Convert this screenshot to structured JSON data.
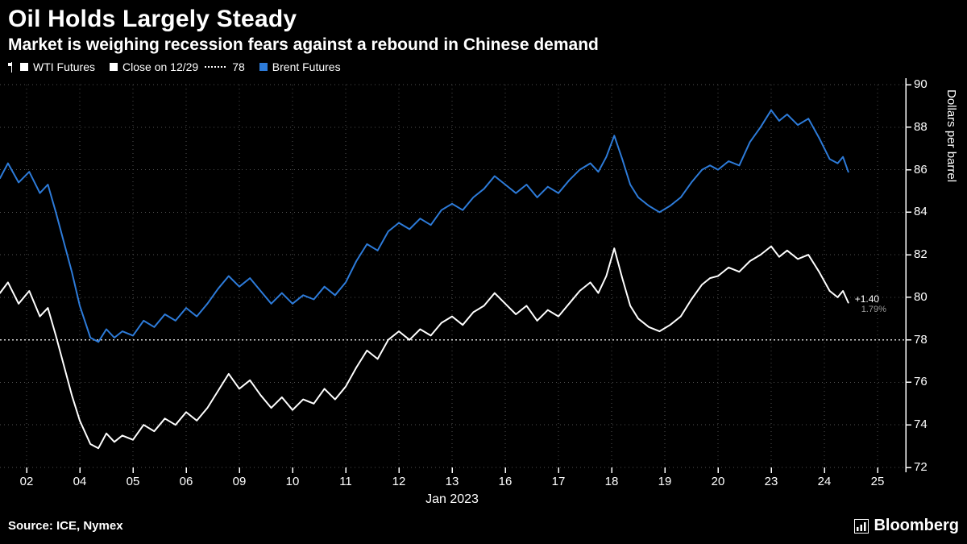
{
  "header": {
    "title": "Oil Holds Largely Steady",
    "subtitle": "Market is weighing recession fears against a rebound in Chinese demand"
  },
  "legend": {
    "wti_label": "WTI Futures",
    "close_label": "Close on 12/29",
    "close_value": "78",
    "brent_label": "Brent Futures"
  },
  "annotation": {
    "change": "+1.40",
    "pct": "1.79%"
  },
  "axis": {
    "y_label": "Dollars per barrel",
    "x_label": "Jan 2023"
  },
  "footer": {
    "source": "Source: ICE, Nymex",
    "brand": "Bloomberg"
  },
  "colors": {
    "wti": "#ffffff",
    "brent": "#2d7bd9",
    "grid": "#4f4f4f",
    "close_line": "#d9d9d9",
    "axis": "#ffffff"
  },
  "chart_data": {
    "type": "line",
    "title": "Oil Holds Largely Steady",
    "x_ticks": [
      "02",
      "04",
      "05",
      "06",
      "09",
      "10",
      "11",
      "12",
      "13",
      "16",
      "17",
      "18",
      "19",
      "20",
      "23",
      "24",
      "25"
    ],
    "x_month_label": "Jan 2023",
    "y_ticks": [
      72,
      74,
      76,
      78,
      80,
      82,
      84,
      86,
      88,
      90
    ],
    "x_domain": [
      0,
      17
    ],
    "y_domain": [
      72,
      90
    ],
    "grid": true,
    "close_line_value": 78,
    "ylabel": "Dollars per barrel",
    "series": [
      {
        "name": "WTI Futures",
        "color_key": "wti",
        "points": [
          [
            0.0,
            80.2
          ],
          [
            0.15,
            80.7
          ],
          [
            0.35,
            79.7
          ],
          [
            0.55,
            80.3
          ],
          [
            0.75,
            79.1
          ],
          [
            0.9,
            79.5
          ],
          [
            1.05,
            78.2
          ],
          [
            1.2,
            76.8
          ],
          [
            1.35,
            75.4
          ],
          [
            1.5,
            74.2
          ],
          [
            1.7,
            73.1
          ],
          [
            1.85,
            72.9
          ],
          [
            2.0,
            73.6
          ],
          [
            2.15,
            73.2
          ],
          [
            2.3,
            73.5
          ],
          [
            2.5,
            73.3
          ],
          [
            2.7,
            74.0
          ],
          [
            2.9,
            73.7
          ],
          [
            3.1,
            74.3
          ],
          [
            3.3,
            74.0
          ],
          [
            3.5,
            74.6
          ],
          [
            3.7,
            74.2
          ],
          [
            3.9,
            74.8
          ],
          [
            4.1,
            75.6
          ],
          [
            4.3,
            76.4
          ],
          [
            4.5,
            75.7
          ],
          [
            4.7,
            76.1
          ],
          [
            4.9,
            75.4
          ],
          [
            5.1,
            74.8
          ],
          [
            5.3,
            75.3
          ],
          [
            5.5,
            74.7
          ],
          [
            5.7,
            75.2
          ],
          [
            5.9,
            75.0
          ],
          [
            6.1,
            75.7
          ],
          [
            6.3,
            75.2
          ],
          [
            6.5,
            75.8
          ],
          [
            6.7,
            76.7
          ],
          [
            6.9,
            77.5
          ],
          [
            7.1,
            77.1
          ],
          [
            7.3,
            78.0
          ],
          [
            7.5,
            78.4
          ],
          [
            7.7,
            78.0
          ],
          [
            7.9,
            78.5
          ],
          [
            8.1,
            78.2
          ],
          [
            8.3,
            78.8
          ],
          [
            8.5,
            79.1
          ],
          [
            8.7,
            78.7
          ],
          [
            8.9,
            79.3
          ],
          [
            9.1,
            79.6
          ],
          [
            9.3,
            80.2
          ],
          [
            9.5,
            79.7
          ],
          [
            9.7,
            79.2
          ],
          [
            9.9,
            79.6
          ],
          [
            10.1,
            78.9
          ],
          [
            10.3,
            79.4
          ],
          [
            10.5,
            79.1
          ],
          [
            10.7,
            79.7
          ],
          [
            10.9,
            80.3
          ],
          [
            11.1,
            80.7
          ],
          [
            11.25,
            80.2
          ],
          [
            11.4,
            81.0
          ],
          [
            11.55,
            82.3
          ],
          [
            11.7,
            80.9
          ],
          [
            11.85,
            79.6
          ],
          [
            12.0,
            79.0
          ],
          [
            12.2,
            78.6
          ],
          [
            12.4,
            78.4
          ],
          [
            12.6,
            78.7
          ],
          [
            12.8,
            79.1
          ],
          [
            13.0,
            79.9
          ],
          [
            13.2,
            80.6
          ],
          [
            13.35,
            80.9
          ],
          [
            13.5,
            81.0
          ],
          [
            13.7,
            81.4
          ],
          [
            13.9,
            81.2
          ],
          [
            14.1,
            81.7
          ],
          [
            14.3,
            82.0
          ],
          [
            14.5,
            82.4
          ],
          [
            14.65,
            81.9
          ],
          [
            14.8,
            82.2
          ],
          [
            15.0,
            81.8
          ],
          [
            15.2,
            82.0
          ],
          [
            15.4,
            81.2
          ],
          [
            15.6,
            80.3
          ],
          [
            15.75,
            80.0
          ],
          [
            15.85,
            80.3
          ],
          [
            15.95,
            79.75
          ]
        ]
      },
      {
        "name": "Brent Futures",
        "color_key": "brent",
        "points": [
          [
            0.0,
            85.6
          ],
          [
            0.15,
            86.3
          ],
          [
            0.35,
            85.4
          ],
          [
            0.55,
            85.9
          ],
          [
            0.75,
            84.9
          ],
          [
            0.9,
            85.3
          ],
          [
            1.05,
            84.0
          ],
          [
            1.2,
            82.6
          ],
          [
            1.35,
            81.2
          ],
          [
            1.5,
            79.6
          ],
          [
            1.7,
            78.1
          ],
          [
            1.85,
            77.9
          ],
          [
            2.0,
            78.5
          ],
          [
            2.15,
            78.1
          ],
          [
            2.3,
            78.4
          ],
          [
            2.5,
            78.2
          ],
          [
            2.7,
            78.9
          ],
          [
            2.9,
            78.6
          ],
          [
            3.1,
            79.2
          ],
          [
            3.3,
            78.9
          ],
          [
            3.5,
            79.5
          ],
          [
            3.7,
            79.1
          ],
          [
            3.9,
            79.7
          ],
          [
            4.1,
            80.4
          ],
          [
            4.3,
            81.0
          ],
          [
            4.5,
            80.5
          ],
          [
            4.7,
            80.9
          ],
          [
            4.9,
            80.3
          ],
          [
            5.1,
            79.7
          ],
          [
            5.3,
            80.2
          ],
          [
            5.5,
            79.7
          ],
          [
            5.7,
            80.1
          ],
          [
            5.9,
            79.9
          ],
          [
            6.1,
            80.5
          ],
          [
            6.3,
            80.1
          ],
          [
            6.5,
            80.7
          ],
          [
            6.7,
            81.7
          ],
          [
            6.9,
            82.5
          ],
          [
            7.1,
            82.2
          ],
          [
            7.3,
            83.1
          ],
          [
            7.5,
            83.5
          ],
          [
            7.7,
            83.2
          ],
          [
            7.9,
            83.7
          ],
          [
            8.1,
            83.4
          ],
          [
            8.3,
            84.1
          ],
          [
            8.5,
            84.4
          ],
          [
            8.7,
            84.1
          ],
          [
            8.9,
            84.7
          ],
          [
            9.1,
            85.1
          ],
          [
            9.3,
            85.7
          ],
          [
            9.5,
            85.3
          ],
          [
            9.7,
            84.9
          ],
          [
            9.9,
            85.3
          ],
          [
            10.1,
            84.7
          ],
          [
            10.3,
            85.2
          ],
          [
            10.5,
            84.9
          ],
          [
            10.7,
            85.5
          ],
          [
            10.9,
            86.0
          ],
          [
            11.1,
            86.3
          ],
          [
            11.25,
            85.9
          ],
          [
            11.4,
            86.6
          ],
          [
            11.55,
            87.6
          ],
          [
            11.7,
            86.5
          ],
          [
            11.85,
            85.3
          ],
          [
            12.0,
            84.7
          ],
          [
            12.2,
            84.3
          ],
          [
            12.4,
            84.0
          ],
          [
            12.6,
            84.3
          ],
          [
            12.8,
            84.7
          ],
          [
            13.0,
            85.4
          ],
          [
            13.2,
            86.0
          ],
          [
            13.35,
            86.2
          ],
          [
            13.5,
            86.0
          ],
          [
            13.7,
            86.4
          ],
          [
            13.9,
            86.2
          ],
          [
            14.1,
            87.3
          ],
          [
            14.3,
            88.0
          ],
          [
            14.5,
            88.8
          ],
          [
            14.65,
            88.3
          ],
          [
            14.8,
            88.6
          ],
          [
            15.0,
            88.1
          ],
          [
            15.2,
            88.4
          ],
          [
            15.4,
            87.5
          ],
          [
            15.6,
            86.5
          ],
          [
            15.75,
            86.3
          ],
          [
            15.85,
            86.6
          ],
          [
            15.95,
            85.9
          ]
        ]
      }
    ]
  }
}
